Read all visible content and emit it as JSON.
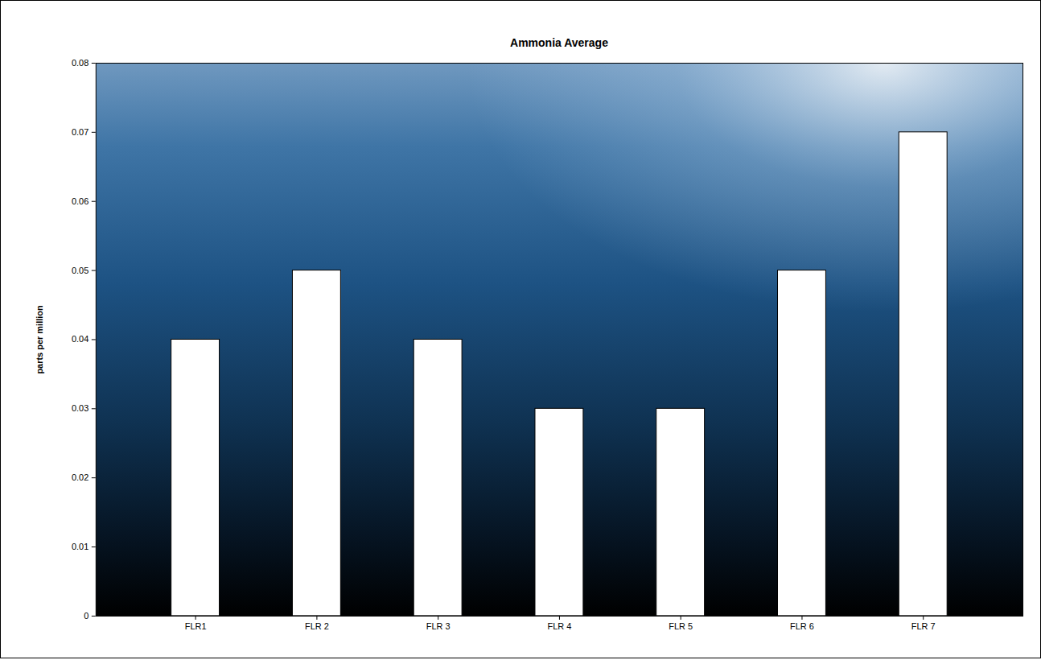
{
  "chart_data": {
    "type": "bar",
    "title": "Ammonia Average",
    "y_label": "parts per million",
    "categories": [
      "FLR1",
      "FLR 2",
      "FLR 3",
      "FLR 4",
      "FLR 5",
      "FLR 6",
      "FLR 7"
    ],
    "values": [
      0.04,
      0.05,
      0.04,
      0.03,
      0.03,
      0.05,
      0.07
    ],
    "color": "#ffffff",
    "ylim": [
      0,
      0.08
    ],
    "yticks": [
      0,
      0.01,
      0.02,
      0.03,
      0.04,
      0.05,
      0.06,
      0.07,
      0.08
    ]
  }
}
